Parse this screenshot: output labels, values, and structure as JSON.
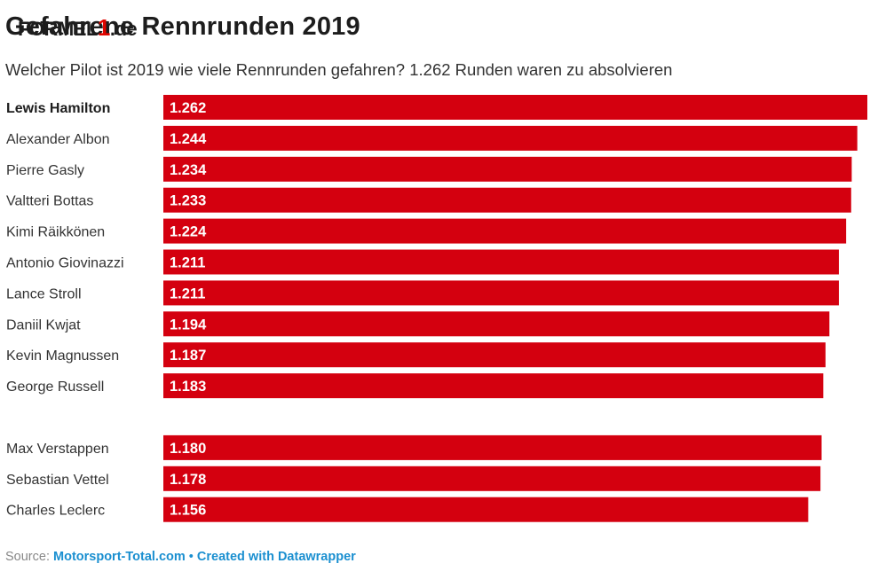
{
  "header": {
    "title": "Gefahrene Rennrunden 2019",
    "logo": {
      "prefix": "FORMEL",
      "number": "1",
      "suffix": ".de"
    },
    "subtitle": "Welcher Pilot ist 2019 wie viele Rennrunden gefahren? 1.262 Runden waren zu absolvieren"
  },
  "chart_data": {
    "type": "bar",
    "orientation": "horizontal",
    "title": "Gefahrene Rennrunden 2019",
    "subtitle": "Welcher Pilot ist 2019 wie viele Rennrunden gefahren? 1.262 Runden waren zu absolvieren",
    "xlim": [
      0,
      1262
    ],
    "bar_color": "#d4000f",
    "highlighted": "Lewis Hamilton",
    "groups": [
      {
        "categories": [
          "Lewis Hamilton",
          "Alexander Albon",
          "Pierre Gasly",
          "Valtteri Bottas",
          "Kimi Räikkönen",
          "Antonio Giovinazzi",
          "Lance Stroll",
          "Daniil Kwjat",
          "Kevin Magnussen",
          "George Russell"
        ],
        "values": [
          1262,
          1244,
          1234,
          1233,
          1224,
          1211,
          1211,
          1194,
          1187,
          1183
        ],
        "labels": [
          "1.262",
          "1.244",
          "1.234",
          "1.233",
          "1.224",
          "1.211",
          "1.211",
          "1.194",
          "1.187",
          "1.183"
        ]
      },
      {
        "categories": [
          "Max Verstappen",
          "Sebastian Vettel",
          "Charles Leclerc"
        ],
        "values": [
          1180,
          1178,
          1156
        ],
        "labels": [
          "1.180",
          "1.178",
          "1.156"
        ]
      }
    ]
  },
  "footer": {
    "source_label": "Source:",
    "source_link": "Motorsport-Total.com",
    "separator": "•",
    "created_with": "Created with Datawrapper"
  },
  "colors": {
    "bar": "#d4000f",
    "text": "#333333",
    "link": "#1a8fd0"
  }
}
